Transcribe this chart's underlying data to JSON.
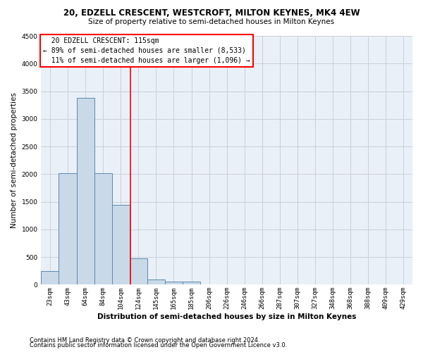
{
  "title_line1": "20, EDZELL CRESCENT, WESTCROFT, MILTON KEYNES, MK4 4EW",
  "title_line2": "Size of property relative to semi-detached houses in Milton Keynes",
  "xlabel": "Distribution of semi-detached houses by size in Milton Keynes",
  "ylabel": "Number of semi-detached properties",
  "footnote1": "Contains HM Land Registry data © Crown copyright and database right 2024.",
  "footnote2": "Contains public sector information licensed under the Open Government Licence v3.0.",
  "categories": [
    "23sqm",
    "43sqm",
    "64sqm",
    "84sqm",
    "104sqm",
    "124sqm",
    "145sqm",
    "165sqm",
    "185sqm",
    "206sqm",
    "226sqm",
    "246sqm",
    "266sqm",
    "287sqm",
    "307sqm",
    "327sqm",
    "348sqm",
    "368sqm",
    "388sqm",
    "409sqm",
    "429sqm"
  ],
  "values": [
    250,
    2020,
    3380,
    2020,
    1450,
    480,
    100,
    60,
    50,
    0,
    0,
    0,
    0,
    0,
    0,
    0,
    0,
    0,
    0,
    0,
    0
  ],
  "bar_color": "#c9d9e8",
  "bar_edge_color": "#5a8ab0",
  "vline_x": 4.55,
  "vline_color": "red",
  "annotation_text": "  20 EDZELL CRESCENT: 115sqm\n← 89% of semi-detached houses are smaller (8,533)\n  11% of semi-detached houses are larger (1,096) →",
  "ylim": [
    0,
    4500
  ],
  "yticks": [
    0,
    500,
    1000,
    1500,
    2000,
    2500,
    3000,
    3500,
    4000,
    4500
  ],
  "grid_color": "#c8d0dc",
  "bg_color": "#eaf0f7",
  "title1_fontsize": 8.5,
  "title2_fontsize": 7.5,
  "ylabel_fontsize": 7.5,
  "xlabel_fontsize": 7.5,
  "tick_fontsize": 6.5,
  "annot_fontsize": 7.0,
  "footnote_fontsize": 6.0
}
